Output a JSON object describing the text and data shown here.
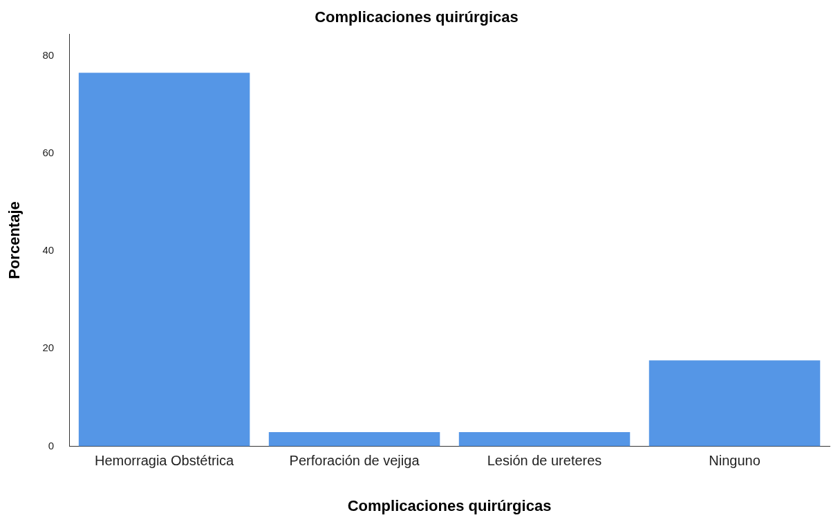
{
  "chart_data": {
    "type": "bar",
    "title": "Complicaciones quirúrgicas",
    "xlabel": "Complicaciones quirúrgicas",
    "ylabel": "Porcentaje",
    "categories": [
      "Hemorragia Obstétrica",
      "Perforación de vejiga",
      "Lesión de ureteres",
      "Ninguno"
    ],
    "values": [
      76.5,
      2.9,
      2.9,
      17.6
    ],
    "color": "#5596e6",
    "ylim": [
      0,
      84.4
    ],
    "yticks": [
      0,
      20,
      40,
      60,
      80
    ],
    "grid": false,
    "legend": false
  }
}
